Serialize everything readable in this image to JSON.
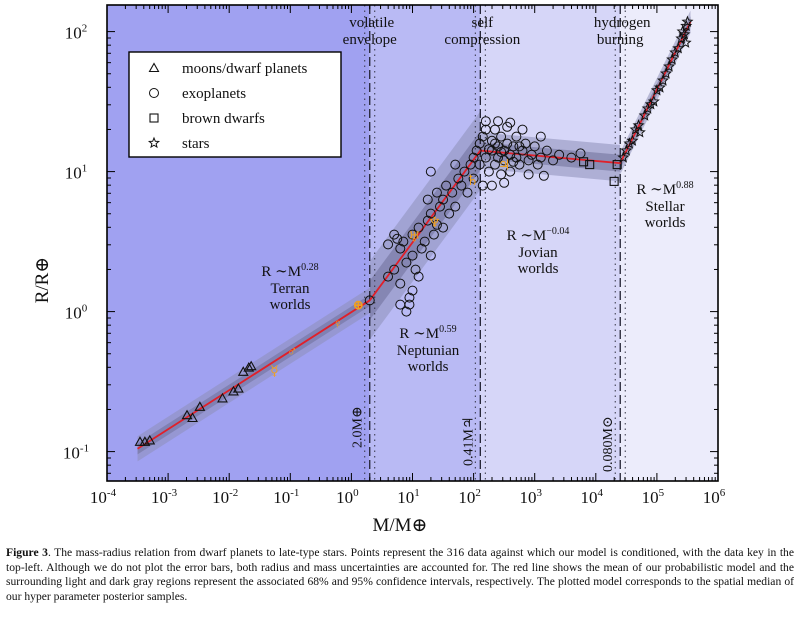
{
  "chart_data": {
    "type": "scatter",
    "xlabel": "M/M⊕",
    "ylabel": "R/R⊕",
    "xscale": "log",
    "yscale": "log",
    "xlim_log10": [
      -4,
      6
    ],
    "ylim_log10": [
      -1.21,
      2.19
    ],
    "x_ticks": [
      {
        "exp": "-4"
      },
      {
        "exp": "-3"
      },
      {
        "exp": "-2"
      },
      {
        "exp": "-1"
      },
      {
        "exp": "0"
      },
      {
        "exp": "1"
      },
      {
        "exp": "2"
      },
      {
        "exp": "3"
      },
      {
        "exp": "4"
      },
      {
        "exp": "5"
      },
      {
        "exp": "6"
      }
    ],
    "y_ticks": [
      {
        "exp": "-1"
      },
      {
        "exp": "0"
      },
      {
        "exp": "1"
      },
      {
        "exp": "2"
      }
    ],
    "tick_base": "10",
    "grid": false,
    "legend": {
      "placement": "top-left",
      "items": [
        {
          "marker": "triangle",
          "label": "moons/dwarf planets"
        },
        {
          "marker": "circle",
          "label": "exoplanets"
        },
        {
          "marker": "square",
          "label": "brown dwarfs"
        },
        {
          "marker": "star",
          "label": "stars"
        }
      ]
    },
    "colors": {
      "model_line": "#e0202a",
      "band_95": "#8e8fb8",
      "band_68": "#6f7099",
      "region_terran": "#a0a1f1",
      "region_neptunian": "#b9baf4",
      "region_jovian": "#d6d6f8",
      "region_stellar": "#ececfb",
      "solar_system": "#f0a020"
    },
    "model": {
      "breakpoints_log10M": [
        -3.5,
        0.3,
        2.11,
        4.4,
        5.55
      ],
      "breakpoints_log10R": [
        -0.98,
        0.08,
        1.15,
        1.06,
        2.07
      ],
      "segment_band68_dex": [
        0.04,
        0.14,
        0.06,
        0.04
      ],
      "segment_band95_dex": [
        0.09,
        0.28,
        0.13,
        0.08
      ]
    },
    "transitions": [
      {
        "log10M": 0.3,
        "title": [
          "volatile",
          "envelope"
        ],
        "label": "2.0M⊕"
      },
      {
        "log10M": 2.11,
        "title": [
          "self",
          "compression"
        ],
        "label": "0.41M♃"
      },
      {
        "log10M": 4.4,
        "title": [
          "hydrogen",
          "burning"
        ],
        "label": "0.080M⊙"
      }
    ],
    "regimes": [
      {
        "relation": "R ∼M",
        "exponent": "0.28",
        "name": "Terran",
        "suffix": "worlds"
      },
      {
        "relation": "R ∼M",
        "exponent": "0.59",
        "name": "Neptunian",
        "suffix": "worlds"
      },
      {
        "relation": "R ∼M",
        "exponent": "−0.04",
        "name": "Jovian",
        "suffix": "worlds"
      },
      {
        "relation": "R ∼M",
        "exponent": "0.88",
        "name": "Stellar",
        "suffix": "worlds"
      }
    ],
    "series": [
      {
        "name": "moons/dwarf planets",
        "marker": "triangle",
        "points_log10": [
          [
            -3.46,
            -0.93
          ],
          [
            -3.38,
            -0.93
          ],
          [
            -3.3,
            -0.92
          ],
          [
            -2.69,
            -0.74
          ],
          [
            -2.6,
            -0.76
          ],
          [
            -2.48,
            -0.68
          ],
          [
            -2.11,
            -0.62
          ],
          [
            -1.93,
            -0.57
          ],
          [
            -1.85,
            -0.55
          ],
          [
            -1.77,
            -0.43
          ],
          [
            -1.68,
            -0.4
          ],
          [
            -1.64,
            -0.39
          ]
        ]
      },
      {
        "name": "exoplanets",
        "marker": "circle",
        "points_log10": [
          [
            0.3,
            0.08
          ],
          [
            0.6,
            0.25
          ],
          [
            0.7,
            0.3
          ],
          [
            0.8,
            0.45
          ],
          [
            0.8,
            0.2
          ],
          [
            0.9,
            0.35
          ],
          [
            0.85,
            0.5
          ],
          [
            0.95,
            0.1
          ],
          [
            1.0,
            0.4
          ],
          [
            1.0,
            0.55
          ],
          [
            1.05,
            0.3
          ],
          [
            1.1,
            0.6
          ],
          [
            1.1,
            0.25
          ],
          [
            1.15,
            0.45
          ],
          [
            1.2,
            0.5
          ],
          [
            1.25,
            0.65
          ],
          [
            1.3,
            0.4
          ],
          [
            1.3,
            0.7
          ],
          [
            1.35,
            0.55
          ],
          [
            0.7,
            0.55
          ],
          [
            0.75,
            0.52
          ],
          [
            0.6,
            0.48
          ],
          [
            1.4,
            0.62
          ],
          [
            1.45,
            0.75
          ],
          [
            1.5,
            0.8
          ],
          [
            1.5,
            0.6
          ],
          [
            1.55,
            0.9
          ],
          [
            1.6,
            0.7
          ],
          [
            1.65,
            0.85
          ],
          [
            1.7,
            0.75
          ],
          [
            1.75,
            0.95
          ],
          [
            1.8,
            0.9
          ],
          [
            1.85,
            1.0
          ],
          [
            1.9,
            0.85
          ],
          [
            1.95,
            1.05
          ],
          [
            2.0,
            0.95
          ],
          [
            2.0,
            1.1
          ],
          [
            1.3,
            1.0
          ],
          [
            1.25,
            0.8
          ],
          [
            1.7,
            1.05
          ],
          [
            1.4,
            0.85
          ],
          [
            0.8,
            0.05
          ],
          [
            0.9,
            0.0
          ],
          [
            1.0,
            0.15
          ],
          [
            0.95,
            0.05
          ],
          [
            2.05,
            1.15
          ],
          [
            2.1,
            1.2
          ],
          [
            2.1,
            1.05
          ],
          [
            2.15,
            1.25
          ],
          [
            2.2,
            1.1
          ],
          [
            2.2,
            1.3
          ],
          [
            2.25,
            1.0
          ],
          [
            2.3,
            1.15
          ],
          [
            2.3,
            1.22
          ],
          [
            2.35,
            1.05
          ],
          [
            2.35,
            1.3
          ],
          [
            2.4,
            1.1
          ],
          [
            2.4,
            1.18
          ],
          [
            2.45,
            1.25
          ],
          [
            2.45,
            0.98
          ],
          [
            2.5,
            1.15
          ],
          [
            2.5,
            1.08
          ],
          [
            2.55,
            1.2
          ],
          [
            2.55,
            1.32
          ],
          [
            2.6,
            1.12
          ],
          [
            2.6,
            1.0
          ],
          [
            2.65,
            1.18
          ],
          [
            2.7,
            1.1
          ],
          [
            2.7,
            1.25
          ],
          [
            2.75,
            1.05
          ],
          [
            2.8,
            1.15
          ],
          [
            2.85,
            1.2
          ],
          [
            2.9,
            1.08
          ],
          [
            2.95,
            1.12
          ],
          [
            3.0,
            1.18
          ],
          [
            3.05,
            1.05
          ],
          [
            3.1,
            1.1
          ],
          [
            3.2,
            1.15
          ],
          [
            3.3,
            1.08
          ],
          [
            3.4,
            1.12
          ],
          [
            3.6,
            1.1
          ],
          [
            3.75,
            1.13
          ],
          [
            2.15,
            0.9
          ],
          [
            2.3,
            0.9
          ],
          [
            2.5,
            0.92
          ],
          [
            2.9,
            0.98
          ],
          [
            3.15,
            0.97
          ],
          [
            2.2,
            1.36
          ],
          [
            2.4,
            1.36
          ],
          [
            2.6,
            1.35
          ],
          [
            2.8,
            1.3
          ],
          [
            3.1,
            1.25
          ],
          [
            2.25,
            1.16
          ],
          [
            2.45,
            1.14
          ],
          [
            2.65,
            1.07
          ],
          [
            2.75,
            1.18
          ],
          [
            2.35,
            1.2
          ]
        ]
      },
      {
        "name": "brown dwarfs",
        "marker": "square",
        "points_log10": [
          [
            3.8,
            1.07
          ],
          [
            3.9,
            1.05
          ],
          [
            4.35,
            1.05
          ],
          [
            4.3,
            0.93
          ]
        ]
      },
      {
        "name": "stars",
        "marker": "star",
        "points_log10": [
          [
            4.45,
            1.1
          ],
          [
            4.5,
            1.15
          ],
          [
            4.55,
            1.2
          ],
          [
            4.6,
            1.22
          ],
          [
            4.65,
            1.3
          ],
          [
            4.7,
            1.33
          ],
          [
            4.72,
            1.28
          ],
          [
            4.8,
            1.4
          ],
          [
            4.85,
            1.45
          ],
          [
            4.9,
            1.48
          ],
          [
            4.95,
            1.5
          ],
          [
            5.0,
            1.58
          ],
          [
            5.05,
            1.6
          ],
          [
            5.1,
            1.65
          ],
          [
            5.15,
            1.7
          ],
          [
            5.2,
            1.75
          ],
          [
            5.25,
            1.8
          ],
          [
            5.3,
            1.85
          ],
          [
            5.35,
            1.88
          ],
          [
            5.4,
            1.95
          ],
          [
            5.42,
            2.0
          ],
          [
            5.45,
            1.98
          ],
          [
            5.48,
            2.04
          ],
          [
            5.5,
            2.07
          ],
          [
            5.47,
            1.92
          ]
        ]
      }
    ],
    "solar_system": [
      {
        "symbol": "☿",
        "log10M": -1.26,
        "log10R": -0.42
      },
      {
        "symbol": "♂",
        "log10M": -0.97,
        "log10R": -0.28
      },
      {
        "symbol": "♀",
        "log10M": -0.09,
        "log10R": -0.02
      },
      {
        "symbol": "⊕",
        "log10M": 0.0,
        "log10R": 0.0
      },
      {
        "symbol": "♅",
        "log10M": 1.16,
        "log10R": 0.6
      },
      {
        "symbol": "♆",
        "log10M": 1.23,
        "log10R": 0.59
      },
      {
        "symbol": "♄",
        "log10M": 1.98,
        "log10R": 0.94
      },
      {
        "symbol": "♃",
        "log10M": 2.5,
        "log10R": 1.05
      }
    ]
  },
  "caption": {
    "label": "Figure 3",
    "text": ". The mass-radius relation from dwarf planets to late-type stars. Points represent the 316 data against which our model is conditioned, with the data key in the top-left. Although we do not plot the error bars, both radius and mass uncertainties are accounted for. The red line shows the mean of our probabilistic model and the surrounding light and dark gray regions represent the associated 68% and 95% confidence intervals, respectively. The plotted model corresponds to the spatial median of our hyper parameter posterior samples."
  }
}
